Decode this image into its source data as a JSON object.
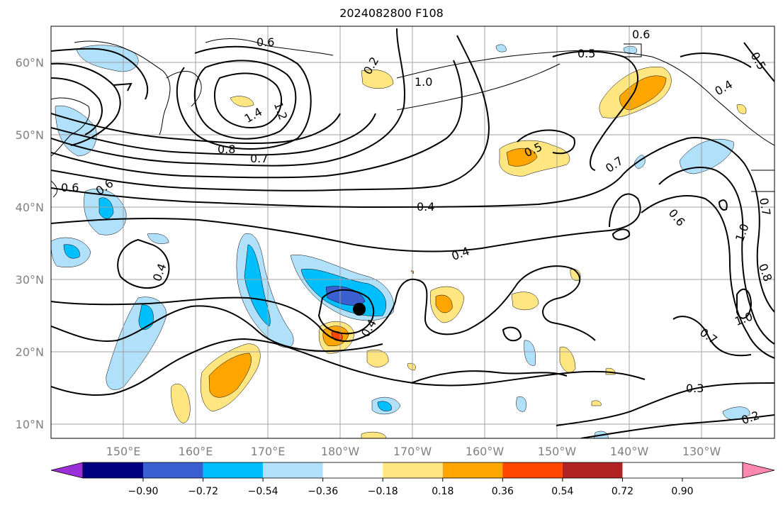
{
  "title": "2024082800 F108",
  "lat_labels": [
    "60°N",
    "50°N",
    "40°N",
    "30°N",
    "20°N",
    "10°N"
  ],
  "lon_labels": [
    "150°E",
    "160°E",
    "170°E",
    "180°W",
    "170°W",
    "160°W",
    "150°W",
    "140°W",
    "130°W"
  ],
  "colorbar": {
    "ticks": [
      "−0.90",
      "−0.72",
      "−0.54",
      "−0.36",
      "−0.18",
      "0.18",
      "0.36",
      "0.54",
      "0.72",
      "0.90"
    ],
    "colors": [
      "#9b30d9",
      "#000080",
      "#3a5fd0",
      "#00bfff",
      "#b0e0fa",
      "#ffffff",
      "#ffe680",
      "#ffa500",
      "#ff4500",
      "#b22222",
      "#ff88b0"
    ]
  },
  "contour_labels": [
    "0.6",
    "0.8",
    "1.0",
    "1.2",
    "1.4",
    "0.6",
    "0.7",
    "0.8",
    "0.6",
    "0.5",
    "0.4",
    "0.5",
    "0.5",
    "0.4",
    "0.8",
    "0.7",
    "0.6",
    "0.6",
    "0.4",
    "0.5",
    "0.4",
    "0.6",
    "1.0",
    "0.8",
    "1.0",
    "0.7",
    "0.3",
    "0.2",
    "0.4",
    "0.7"
  ],
  "colors": {
    "contour": "#000000",
    "grid": "#a0a0a0",
    "marker": "#000000"
  }
}
